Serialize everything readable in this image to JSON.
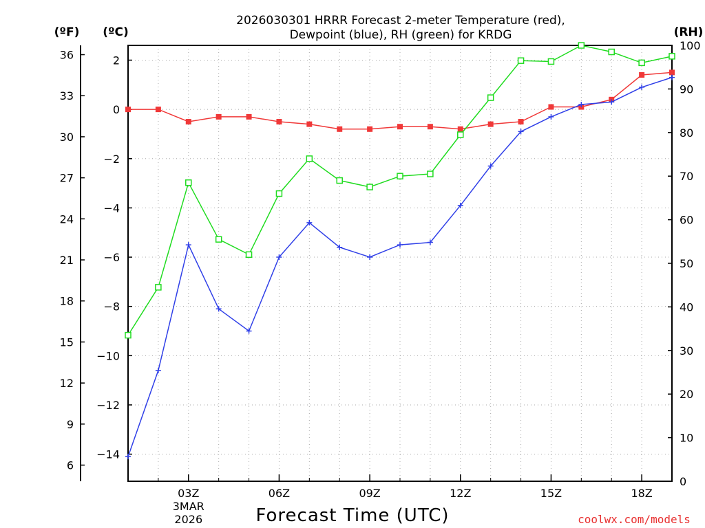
{
  "chart_data": {
    "type": "line",
    "title_line1": "2026030301 HRRR Forecast 2-meter Temperature (red),",
    "title_line2": "Dewpoint (blue), RH (green) for KRDG",
    "xlabel": "Forecast Time (UTC)",
    "credit": "coolwx.com/models",
    "units": {
      "fahrenheit": "(ºF)",
      "celsius": "(ºC)",
      "rh": "(RH)"
    },
    "x": [
      1,
      2,
      3,
      4,
      5,
      6,
      7,
      8,
      9,
      10,
      11,
      12,
      13,
      14,
      15,
      16,
      17,
      18,
      19
    ],
    "xlim": [
      1,
      19
    ],
    "x_ticks": [
      {
        "x": 3,
        "label": "03Z",
        "sub1": "3MAR",
        "sub2": "2026"
      },
      {
        "x": 6,
        "label": "06Z"
      },
      {
        "x": 9,
        "label": "09Z"
      },
      {
        "x": 12,
        "label": "12Z"
      },
      {
        "x": 15,
        "label": "15Z"
      },
      {
        "x": 18,
        "label": "18Z"
      }
    ],
    "celsius_axis": {
      "range": [
        -15.1,
        2.6
      ],
      "ticks": [
        2,
        0,
        -2,
        -4,
        -6,
        -8,
        -10,
        -12,
        -14
      ],
      "tick_labels": [
        "2",
        "0",
        "−2",
        "−4",
        "−6",
        "−8",
        "−10",
        "−12",
        "−14"
      ]
    },
    "fahrenheit_axis": {
      "ticks": [
        36,
        33,
        30,
        27,
        24,
        21,
        18,
        15,
        12,
        9,
        6
      ],
      "tick_labels": [
        "36",
        "33",
        "30",
        "27",
        "24",
        "21",
        "18",
        "15",
        "12",
        "9",
        "6"
      ]
    },
    "rh_axis": {
      "range": [
        0,
        100
      ],
      "ticks": [
        100,
        90,
        80,
        70,
        60,
        50,
        40,
        30,
        20,
        10,
        0
      ],
      "tick_labels": [
        "100",
        "90",
        "80",
        "70",
        "60",
        "50",
        "40",
        "30",
        "20",
        "10",
        "0"
      ]
    },
    "grid": true,
    "series": [
      {
        "name": "Temperature",
        "axis": "celsius",
        "color": "#f03838",
        "marker": "filled-square",
        "values": [
          0.0,
          0.0,
          -0.5,
          -0.3,
          -0.3,
          -0.5,
          -0.6,
          -0.8,
          -0.8,
          -0.7,
          -0.7,
          -0.8,
          -0.6,
          -0.5,
          0.1,
          0.1,
          0.4,
          1.4,
          1.5
        ]
      },
      {
        "name": "Dewpoint",
        "axis": "celsius",
        "color": "#3040e8",
        "marker": "plus",
        "values": [
          -14.1,
          -10.6,
          -5.5,
          -8.1,
          -9.0,
          -6.0,
          -4.6,
          -5.6,
          -6.0,
          -5.5,
          -5.4,
          -3.9,
          -2.3,
          -0.9,
          -0.3,
          0.2,
          0.3,
          0.9,
          1.3
        ]
      },
      {
        "name": "RH",
        "axis": "rh",
        "color": "#20dc20",
        "marker": "open-square",
        "values": [
          33.5,
          44.5,
          68.5,
          55.5,
          52.0,
          66.0,
          74.0,
          69.0,
          67.5,
          70.0,
          70.5,
          79.5,
          88.0,
          96.5,
          96.3,
          100.0,
          98.5,
          96.0,
          97.5
        ]
      }
    ]
  }
}
